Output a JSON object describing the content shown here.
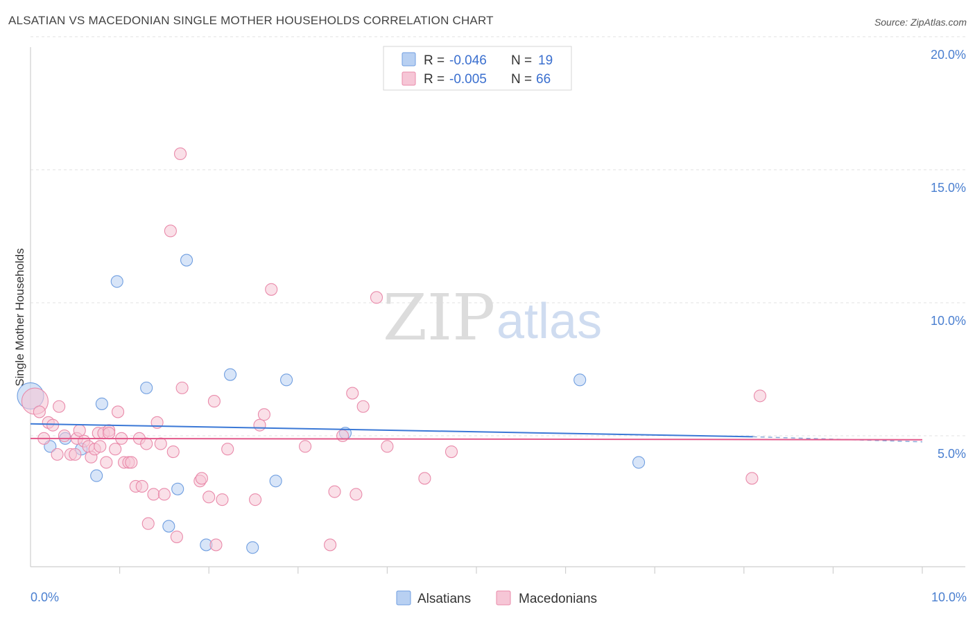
{
  "title": "ALSATIAN VS MACEDONIAN SINGLE MOTHER HOUSEHOLDS CORRELATION CHART",
  "source": "Source: ZipAtlas.com",
  "watermark": {
    "zip": "ZIP",
    "atlas": "atlas"
  },
  "chart_data": {
    "type": "scatter",
    "title": "ALSATIAN VS MACEDONIAN SINGLE MOTHER HOUSEHOLDS CORRELATION CHART",
    "xlabel": "",
    "ylabel": "Single Mother Households",
    "xlim": [
      0,
      10
    ],
    "ylim": [
      0,
      20
    ],
    "x_tick_labels": {
      "left": "0.0%",
      "right": "10.0%"
    },
    "y_ticks": [
      {
        "value": 5,
        "label": "5.0%"
      },
      {
        "value": 10,
        "label": "10.0%"
      },
      {
        "value": 15,
        "label": "15.0%"
      },
      {
        "value": 20,
        "label": "20.0%"
      }
    ],
    "legend": {
      "rows": [
        {
          "r_label": "R =",
          "r_value": "-0.046",
          "n_label": "N =",
          "n_value": "19"
        },
        {
          "r_label": "R =",
          "r_value": "-0.005",
          "n_label": "N =",
          "n_value": "66"
        }
      ]
    },
    "series": [
      {
        "name": "Alsatians",
        "color": "#6f9ee0",
        "fill": "#b8d0f2",
        "trend": {
          "x0": 0,
          "y0": 5.45,
          "x1": 10,
          "y1": 4.85,
          "dashed_from_x": 8.1
        },
        "points": [
          {
            "x": 0.0,
            "y": 6.5,
            "big": true
          },
          {
            "x": 0.22,
            "y": 4.6
          },
          {
            "x": 0.39,
            "y": 4.9
          },
          {
            "x": 0.57,
            "y": 4.5
          },
          {
            "x": 0.74,
            "y": 3.5
          },
          {
            "x": 0.8,
            "y": 6.2
          },
          {
            "x": 0.97,
            "y": 10.8
          },
          {
            "x": 1.3,
            "y": 6.8
          },
          {
            "x": 1.55,
            "y": 1.6
          },
          {
            "x": 1.65,
            "y": 3.0
          },
          {
            "x": 1.75,
            "y": 11.6
          },
          {
            "x": 1.97,
            "y": 0.9
          },
          {
            "x": 2.24,
            "y": 7.3
          },
          {
            "x": 2.49,
            "y": 0.8
          },
          {
            "x": 2.75,
            "y": 3.3
          },
          {
            "x": 2.87,
            "y": 7.1
          },
          {
            "x": 3.53,
            "y": 5.1
          },
          {
            "x": 6.16,
            "y": 7.1
          },
          {
            "x": 6.82,
            "y": 4.0
          }
        ]
      },
      {
        "name": "Macedonians",
        "color": "#e98aaa",
        "fill": "#f6c6d6",
        "trend": {
          "x0": 0,
          "y0": 4.9,
          "x1": 10,
          "y1": 4.85
        },
        "points": [
          {
            "x": 0.05,
            "y": 6.3,
            "big": true
          },
          {
            "x": 0.1,
            "y": 5.9
          },
          {
            "x": 0.15,
            "y": 4.9
          },
          {
            "x": 0.2,
            "y": 5.5
          },
          {
            "x": 0.25,
            "y": 5.4
          },
          {
            "x": 0.3,
            "y": 4.3
          },
          {
            "x": 0.32,
            "y": 6.1
          },
          {
            "x": 0.38,
            "y": 5.0
          },
          {
            "x": 0.45,
            "y": 4.3
          },
          {
            "x": 0.5,
            "y": 4.3
          },
          {
            "x": 0.52,
            "y": 4.9
          },
          {
            "x": 0.55,
            "y": 5.2
          },
          {
            "x": 0.6,
            "y": 4.8
          },
          {
            "x": 0.65,
            "y": 4.6
          },
          {
            "x": 0.68,
            "y": 4.2
          },
          {
            "x": 0.72,
            "y": 4.5
          },
          {
            "x": 0.76,
            "y": 5.1
          },
          {
            "x": 0.78,
            "y": 4.6
          },
          {
            "x": 0.82,
            "y": 5.1
          },
          {
            "x": 0.85,
            "y": 4.0
          },
          {
            "x": 0.88,
            "y": 5.2
          },
          {
            "x": 0.95,
            "y": 4.5
          },
          {
            "x": 0.98,
            "y": 5.9
          },
          {
            "x": 1.02,
            "y": 4.9
          },
          {
            "x": 1.05,
            "y": 4.0
          },
          {
            "x": 1.1,
            "y": 4.0
          },
          {
            "x": 1.13,
            "y": 4.0
          },
          {
            "x": 1.18,
            "y": 3.1
          },
          {
            "x": 1.22,
            "y": 4.9
          },
          {
            "x": 1.25,
            "y": 3.1
          },
          {
            "x": 1.3,
            "y": 4.7
          },
          {
            "x": 1.32,
            "y": 1.7
          },
          {
            "x": 1.38,
            "y": 2.8
          },
          {
            "x": 1.42,
            "y": 5.5
          },
          {
            "x": 1.46,
            "y": 4.7
          },
          {
            "x": 1.5,
            "y": 2.8
          },
          {
            "x": 1.6,
            "y": 4.4
          },
          {
            "x": 1.64,
            "y": 1.2
          },
          {
            "x": 1.7,
            "y": 6.8
          },
          {
            "x": 1.9,
            "y": 3.3
          },
          {
            "x": 1.92,
            "y": 3.4
          },
          {
            "x": 2.0,
            "y": 2.7
          },
          {
            "x": 2.06,
            "y": 6.3
          },
          {
            "x": 2.08,
            "y": 0.9
          },
          {
            "x": 2.15,
            "y": 2.6
          },
          {
            "x": 2.21,
            "y": 4.5
          },
          {
            "x": 2.52,
            "y": 2.6
          },
          {
            "x": 2.57,
            "y": 5.4
          },
          {
            "x": 2.62,
            "y": 5.8
          },
          {
            "x": 2.7,
            "y": 10.5
          },
          {
            "x": 3.08,
            "y": 4.6
          },
          {
            "x": 3.36,
            "y": 0.9
          },
          {
            "x": 3.41,
            "y": 2.9
          },
          {
            "x": 3.5,
            "y": 5.0
          },
          {
            "x": 3.61,
            "y": 6.6
          },
          {
            "x": 3.65,
            "y": 2.8
          },
          {
            "x": 3.73,
            "y": 6.1
          },
          {
            "x": 3.88,
            "y": 10.2
          },
          {
            "x": 4.0,
            "y": 4.6
          },
          {
            "x": 4.42,
            "y": 3.4
          },
          {
            "x": 4.72,
            "y": 4.4
          },
          {
            "x": 1.68,
            "y": 15.6
          },
          {
            "x": 1.57,
            "y": 12.7
          },
          {
            "x": 8.09,
            "y": 3.4
          },
          {
            "x": 8.18,
            "y": 6.5
          },
          {
            "x": 0.88,
            "y": 5.1
          }
        ]
      }
    ],
    "bottom_legend": [
      "Alsatians",
      "Macedonians"
    ]
  }
}
